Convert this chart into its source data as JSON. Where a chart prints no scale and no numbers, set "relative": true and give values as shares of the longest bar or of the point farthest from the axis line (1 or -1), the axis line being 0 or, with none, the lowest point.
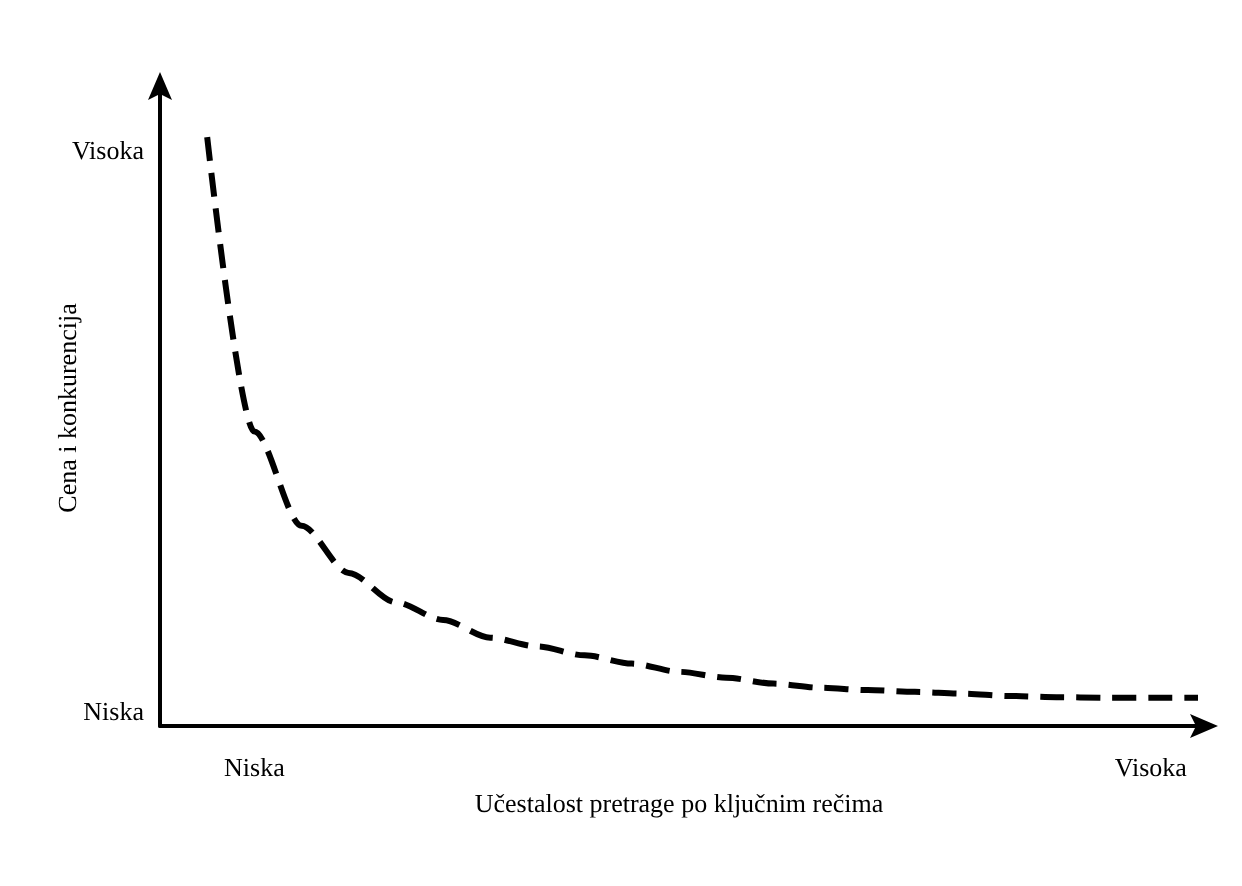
{
  "chart_data": {
    "type": "line",
    "xlabel": "Učestalost pretrage po ključnim rečima",
    "ylabel": "Cena i konkurencija",
    "categories": [
      null,
      null,
      "Niska",
      null,
      null,
      null,
      null,
      null,
      null,
      null,
      null,
      null,
      null,
      null,
      null,
      null,
      null,
      null,
      null,
      null,
      null,
      "Visoka",
      null
    ],
    "relative": true,
    "series": [
      {
        "color": "#000000",
        "values": [
          null,
          1,
          0.5,
          0.34,
          0.26,
          0.21,
          0.18,
          0.15,
          0.135,
          0.12,
          0.106,
          0.092,
          0.082,
          0.072,
          0.065,
          0.061,
          0.058,
          0.055,
          0.051,
          0.049,
          0.048,
          0.048,
          0.048
        ]
      }
    ],
    "annotations": [
      "Visoka",
      "Niska"
    ],
    "grid": false,
    "marker": "none",
    "line_style": "dashed"
  }
}
